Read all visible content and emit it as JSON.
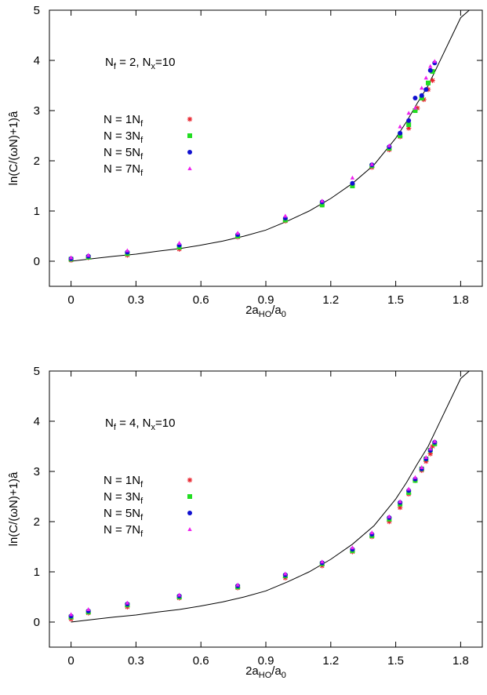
{
  "chart_data": [
    {
      "type": "scatter",
      "title": "",
      "annotation_parts": [
        "N",
        "f",
        " = 2, N",
        "x",
        "=10"
      ],
      "xlabel_parts": [
        "2a",
        "HO",
        "/a",
        "0"
      ],
      "ylabel": "ln(C/(ωN)+1)â",
      "xlim": [
        -0.1,
        1.9
      ],
      "ylim": [
        -0.5,
        5
      ],
      "xticks": [
        "0",
        "0.3",
        "0.6",
        "0.9",
        "1.2",
        "1.5",
        "1.8"
      ],
      "yticks": [
        "0",
        "1",
        "2",
        "3",
        "4",
        "5"
      ],
      "grid": false,
      "legend_position": "center-left",
      "curve": {
        "x": [
          0,
          0.1,
          0.2,
          0.3,
          0.4,
          0.5,
          0.6,
          0.7,
          0.8,
          0.9,
          1.0,
          1.1,
          1.2,
          1.3,
          1.4,
          1.5,
          1.55,
          1.6,
          1.65,
          1.7,
          1.75,
          1.8,
          1.84
        ],
        "y": [
          0.0,
          0.05,
          0.1,
          0.14,
          0.2,
          0.25,
          0.32,
          0.4,
          0.5,
          0.62,
          0.8,
          1.0,
          1.25,
          1.55,
          1.92,
          2.45,
          2.78,
          3.15,
          3.5,
          3.95,
          4.4,
          4.85,
          5.0
        ]
      },
      "series": [
        {
          "label_parts": [
            "N = 1N",
            "f"
          ],
          "marker": "star",
          "color": "#e8202a",
          "x": [
            0,
            0.08,
            0.26,
            0.5,
            0.77,
            0.99,
            1.16,
            1.3,
            1.39,
            1.47,
            1.52,
            1.56,
            1.6,
            1.63,
            1.65,
            1.67
          ],
          "y": [
            0.02,
            0.07,
            0.12,
            0.24,
            0.48,
            0.8,
            1.12,
            1.52,
            1.87,
            2.22,
            2.48,
            2.65,
            3.05,
            3.22,
            3.42,
            3.6
          ]
        },
        {
          "label_parts": [
            "N = 3N",
            "f"
          ],
          "marker": "square",
          "color": "#22dd22",
          "x": [
            0,
            0.08,
            0.26,
            0.5,
            0.77,
            0.99,
            1.16,
            1.3,
            1.39,
            1.47,
            1.52,
            1.56,
            1.59,
            1.62,
            1.65,
            1.67
          ],
          "y": [
            0.04,
            0.08,
            0.15,
            0.28,
            0.5,
            0.82,
            1.12,
            1.5,
            1.9,
            2.25,
            2.5,
            2.72,
            3.0,
            3.25,
            3.55,
            3.78
          ]
        },
        {
          "label_parts": [
            "N = 5N",
            "f"
          ],
          "marker": "circle",
          "color": "#1010d0",
          "x": [
            0,
            0.08,
            0.26,
            0.5,
            0.77,
            0.99,
            1.16,
            1.3,
            1.39,
            1.47,
            1.52,
            1.56,
            1.59,
            1.62,
            1.64,
            1.66,
            1.68
          ],
          "y": [
            0.05,
            0.1,
            0.18,
            0.32,
            0.53,
            0.86,
            1.18,
            1.55,
            1.92,
            2.28,
            2.55,
            2.8,
            3.25,
            3.3,
            3.42,
            3.8,
            3.95
          ]
        },
        {
          "label_parts": [
            "N = 7N",
            "f"
          ],
          "marker": "triangle",
          "color": "#ee20ee",
          "x": [
            0,
            0.08,
            0.26,
            0.5,
            0.77,
            0.99,
            1.16,
            1.3,
            1.39,
            1.47,
            1.52,
            1.56,
            1.59,
            1.62,
            1.64,
            1.66,
            1.68
          ],
          "y": [
            0.07,
            0.12,
            0.21,
            0.36,
            0.56,
            0.9,
            1.2,
            1.66,
            1.93,
            2.3,
            2.68,
            2.95,
            3.05,
            3.45,
            3.65,
            3.88,
            3.98
          ]
        }
      ]
    },
    {
      "type": "scatter",
      "title": "",
      "annotation_parts": [
        "N",
        "f",
        " = 4, N",
        "x",
        "=10"
      ],
      "xlabel_parts": [
        "2a",
        "HO",
        "/a",
        "0"
      ],
      "ylabel": "ln(C/(ωN)+1)â",
      "xlim": [
        -0.1,
        1.9
      ],
      "ylim": [
        -0.5,
        5
      ],
      "xticks": [
        "0",
        "0.3",
        "0.6",
        "0.9",
        "1.2",
        "1.5",
        "1.8"
      ],
      "yticks": [
        "0",
        "1",
        "2",
        "3",
        "4",
        "5"
      ],
      "grid": false,
      "legend_position": "center-left",
      "curve": {
        "x": [
          0,
          0.1,
          0.2,
          0.3,
          0.4,
          0.5,
          0.6,
          0.7,
          0.8,
          0.9,
          1.0,
          1.1,
          1.2,
          1.3,
          1.4,
          1.5,
          1.55,
          1.6,
          1.65,
          1.7,
          1.75,
          1.8,
          1.84
        ],
        "y": [
          0.0,
          0.05,
          0.1,
          0.14,
          0.2,
          0.25,
          0.32,
          0.4,
          0.5,
          0.62,
          0.8,
          1.0,
          1.25,
          1.55,
          1.92,
          2.45,
          2.78,
          3.15,
          3.5,
          3.95,
          4.4,
          4.85,
          5.0
        ]
      },
      "series": [
        {
          "label_parts": [
            "N = 1N",
            "f"
          ],
          "marker": "star",
          "color": "#e8202a",
          "x": [
            0,
            0.08,
            0.26,
            0.5,
            0.77,
            0.99,
            1.16,
            1.3,
            1.39,
            1.47,
            1.52,
            1.56,
            1.59,
            1.62,
            1.64,
            1.66,
            1.67
          ],
          "y": [
            0.06,
            0.18,
            0.3,
            0.48,
            0.68,
            0.88,
            1.12,
            1.4,
            1.7,
            2.0,
            2.28,
            2.55,
            2.82,
            3.02,
            3.2,
            3.35,
            3.5
          ]
        },
        {
          "label_parts": [
            "N = 3N",
            "f"
          ],
          "marker": "square",
          "color": "#22dd22",
          "x": [
            0,
            0.08,
            0.26,
            0.5,
            0.77,
            0.99,
            1.16,
            1.3,
            1.39,
            1.47,
            1.52,
            1.56,
            1.59,
            1.62,
            1.64,
            1.66,
            1.68
          ],
          "y": [
            0.1,
            0.2,
            0.34,
            0.5,
            0.7,
            0.92,
            1.16,
            1.42,
            1.72,
            2.05,
            2.35,
            2.58,
            2.82,
            3.05,
            3.25,
            3.42,
            3.55
          ]
        },
        {
          "label_parts": [
            "N = 5N",
            "f"
          ],
          "marker": "circle",
          "color": "#1010d0",
          "x": [
            0,
            0.08,
            0.26,
            0.5,
            0.77,
            0.99,
            1.16,
            1.3,
            1.39,
            1.47,
            1.52,
            1.56,
            1.59,
            1.62,
            1.64,
            1.66,
            1.68
          ],
          "y": [
            0.12,
            0.22,
            0.36,
            0.52,
            0.72,
            0.94,
            1.18,
            1.45,
            1.75,
            2.08,
            2.38,
            2.62,
            2.85,
            3.05,
            3.25,
            3.42,
            3.58
          ]
        },
        {
          "label_parts": [
            "N = 7N",
            "f"
          ],
          "marker": "triangle",
          "color": "#ee20ee",
          "x": [
            0,
            0.08,
            0.26,
            0.5,
            0.77,
            0.99,
            1.16,
            1.3,
            1.39,
            1.47,
            1.52,
            1.56,
            1.59,
            1.62,
            1.64,
            1.66,
            1.68
          ],
          "y": [
            0.15,
            0.25,
            0.38,
            0.54,
            0.74,
            0.96,
            1.2,
            1.48,
            1.78,
            2.1,
            2.4,
            2.65,
            2.88,
            3.08,
            3.28,
            3.45,
            3.6
          ]
        }
      ]
    }
  ]
}
